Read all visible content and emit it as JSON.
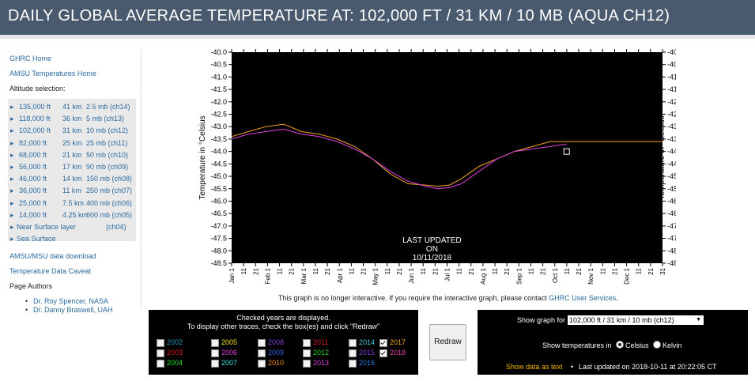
{
  "page_title": "DAILY GLOBAL AVERAGE TEMPERATURE AT: 102,000 FT / 31 KM / 10 MB (AQUA CH12)",
  "sidebar": {
    "links": [
      "GHRC Home",
      "AMSU Temperatures Home"
    ],
    "altitude_label": "Altitude selection:",
    "altitudes": [
      {
        "ft": "135,000 ft",
        "km": "41 km",
        "mb": "2.5 mb (ch14)"
      },
      {
        "ft": "118,000 ft",
        "km": "36 km",
        "mb": "5 mb (ch13)"
      },
      {
        "ft": "102,000 ft",
        "km": "31 km",
        "mb": "10 mb (ch12)"
      },
      {
        "ft": "82,000 ft",
        "km": "25 km",
        "mb": "25 mb (ch11)"
      },
      {
        "ft": "68,000 ft",
        "km": "21 km",
        "mb": "50 mb (ch10)"
      },
      {
        "ft": "56,000 ft",
        "km": "17 km",
        "mb": "90 mb (ch09)"
      },
      {
        "ft": "46,000 ft",
        "km": "14 km",
        "mb": "150 mb (ch08)"
      },
      {
        "ft": "36,000 ft",
        "km": "11 km",
        "mb": "250 mb (ch07)"
      },
      {
        "ft": "25,000 ft",
        "km": "7.5 km",
        "mb": "400 mb (ch06)"
      },
      {
        "ft": "14,000 ft",
        "km": "4.25 km",
        "mb": "600 mb (ch05)"
      }
    ],
    "near_surface": "Near Surface layer",
    "near_surface_ch": "(ch04)",
    "sea_surface": "Sea Surface",
    "download": "AMSU/MSU data download",
    "caveat": "Temperature Data Caveat",
    "authors_label": "Page Authors",
    "authors": [
      "Dr. Roy Spencer, NASA",
      "Dr. Danny Braswell, UAH"
    ]
  },
  "chart_data": {
    "type": "line",
    "ylabel": "Temperature in °Celsius",
    "ylim": [
      -48.5,
      -40.0
    ],
    "y_ticks": [
      "-40.0",
      "-40.5",
      "-41.0",
      "-41.5",
      "-42.0",
      "-42.5",
      "-43.0",
      "-43.5",
      "-44.0",
      "-44.5",
      "-45.0",
      "-45.5",
      "-46.0",
      "-46.5",
      "-47.0",
      "-47.5",
      "-48.0",
      "-48.5"
    ],
    "x_ticks": [
      "Jan 1",
      "11",
      "21",
      "Feb 1",
      "11",
      "21",
      "Mar 1",
      "11",
      "21",
      "Apr 1",
      "11",
      "21",
      "May 1",
      "11",
      "21",
      "Jun 1",
      "11",
      "21",
      "Jul 1",
      "11",
      "21",
      "Aug 1",
      "11",
      "21",
      "Sep 1",
      "11",
      "21",
      "Oct 1",
      "11",
      "21",
      "Nov 1",
      "11",
      "21",
      "Dec 1",
      "11",
      "21",
      "31"
    ],
    "annotation": [
      "LAST UPDATED",
      "ON",
      "10/11/2018"
    ],
    "background": "#000000",
    "series": [
      {
        "name": "2017",
        "color": "#f5a623",
        "x": [
          1,
          15,
          30,
          45,
          60,
          75,
          90,
          105,
          120,
          135,
          150,
          165,
          175,
          185,
          195,
          210,
          225,
          240,
          255,
          270,
          284,
          300,
          315,
          330,
          345,
          365
        ],
        "y": [
          -43.4,
          -43.2,
          -43.0,
          -42.9,
          -43.2,
          -43.3,
          -43.5,
          -43.8,
          -44.3,
          -44.9,
          -45.3,
          -45.35,
          -45.4,
          -45.35,
          -45.1,
          -44.6,
          -44.3,
          -44.0,
          -43.8,
          -43.6,
          -43.6,
          -43.6,
          -43.6,
          -43.6,
          -43.6,
          -43.6
        ]
      },
      {
        "name": "2018",
        "color": "#e040e0",
        "x": [
          1,
          15,
          30,
          45,
          60,
          75,
          90,
          105,
          120,
          135,
          150,
          165,
          175,
          185,
          195,
          210,
          225,
          240,
          255,
          270,
          284
        ],
        "y": [
          -43.5,
          -43.3,
          -43.2,
          -43.1,
          -43.3,
          -43.4,
          -43.6,
          -43.9,
          -44.3,
          -44.8,
          -45.2,
          -45.4,
          -45.5,
          -45.45,
          -45.3,
          -44.8,
          -44.3,
          -44.0,
          -43.9,
          -43.8,
          -43.7
        ]
      }
    ],
    "marker": {
      "x": 284,
      "y": -44.0
    }
  },
  "note": {
    "text": "This graph is no longer interactive. If you require the interactive graph, please contact ",
    "link": "GHRC User Services",
    "end": "."
  },
  "years_panel": {
    "heading1": "Checked years are displayed.",
    "heading2": "To display other traces, check the box(es) and click \"Redraw\"",
    "years": [
      {
        "year": "2002",
        "color": "#2b8fb5",
        "checked": false
      },
      {
        "year": "2005",
        "color": "#f2e21a",
        "checked": false
      },
      {
        "year": "2008",
        "color": "#7a3fd1",
        "checked": false
      },
      {
        "year": "2011",
        "color": "#d11a1a",
        "checked": false
      },
      {
        "year": "2014",
        "color": "#40c8d8",
        "checked": false
      },
      {
        "year": "2017",
        "color": "#f5a623",
        "checked": true
      },
      {
        "year": "2003",
        "color": "#d91a1a",
        "checked": false
      },
      {
        "year": "2006",
        "color": "#e040e0",
        "checked": false
      },
      {
        "year": "2009",
        "color": "#3a5ee0",
        "checked": false
      },
      {
        "year": "2012",
        "color": "#22cc22",
        "checked": false
      },
      {
        "year": "2015",
        "color": "#7a3fd1",
        "checked": false
      },
      {
        "year": "2018",
        "color": "#e040a0",
        "checked": true
      },
      {
        "year": "2004",
        "color": "#22dd22",
        "checked": false
      },
      {
        "year": "2007",
        "color": "#40e0e0",
        "checked": false
      },
      {
        "year": "2010",
        "color": "#f08a1a",
        "checked": false
      },
      {
        "year": "2013",
        "color": "#e040e0",
        "checked": false
      },
      {
        "year": "2016",
        "color": "#2a7ae0",
        "checked": false
      }
    ]
  },
  "redraw_label": "Redraw",
  "options": {
    "show_graph_for": "Show graph for",
    "selected": "102,000 ft / 31 km / 10 mb (ch12)",
    "show_temps_in": "Show temperatures in",
    "celsius": "Celsius",
    "kelvin": "Kelvin",
    "show_data": "Show data as text",
    "last_updated": "Last updated on 2018-10-11 at 20:22:05 CT"
  }
}
